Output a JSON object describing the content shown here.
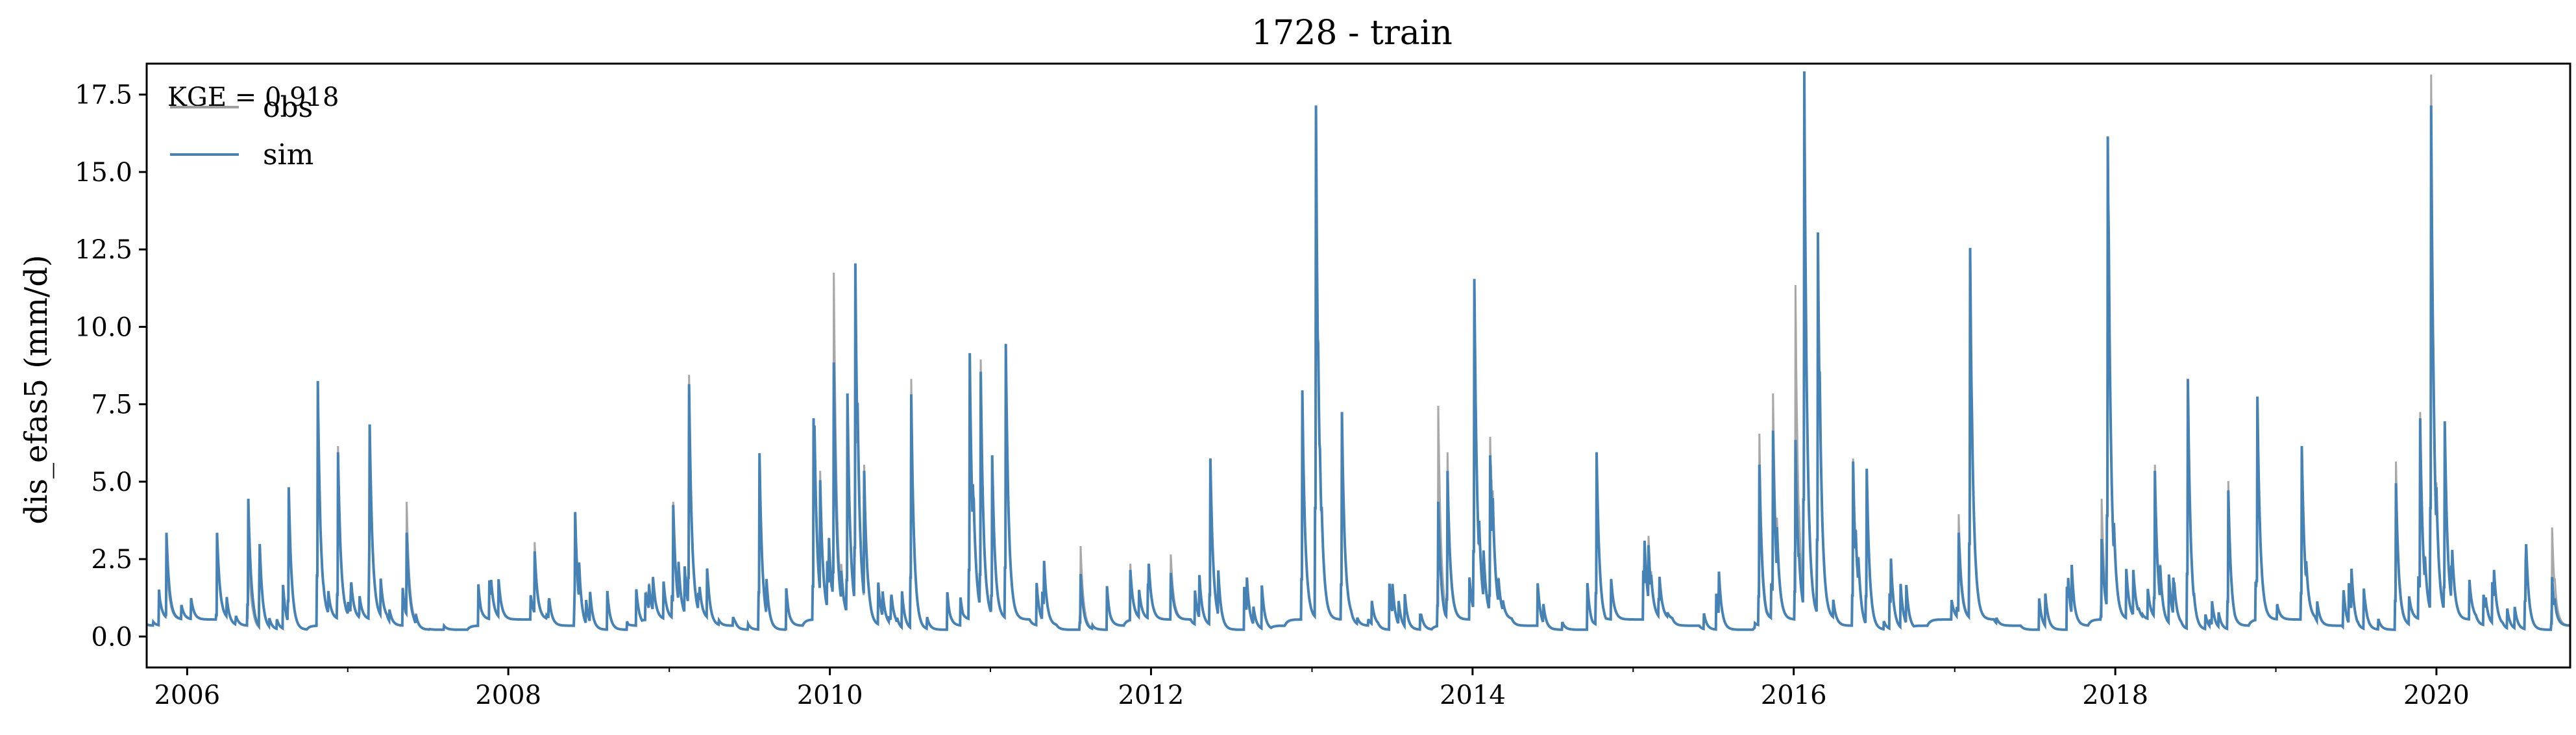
{
  "chart_data": {
    "type": "line",
    "title": "1728 - train",
    "xlabel": "",
    "ylabel": "dis_efas5 (mm/d)",
    "xlim": [
      "2005-10-01",
      "2020-10-31"
    ],
    "ylim": [
      -1.0,
      18.5
    ],
    "x_ticks": [
      "2006",
      "2008",
      "2010",
      "2012",
      "2014",
      "2016",
      "2018",
      "2020"
    ],
    "y_ticks": [
      "0.0",
      "2.5",
      "5.0",
      "7.5",
      "10.0",
      "12.5",
      "15.0",
      "17.5"
    ],
    "annotation": "KGE = 0.918",
    "legend_position": "top-left",
    "grid": false,
    "series": [
      {
        "name": "obs",
        "color": "#9e9e9e",
        "peaks": [
          [
            "2005-11-15",
            2.0
          ],
          [
            "2006-03-10",
            2.6
          ],
          [
            "2006-05-20",
            2.4
          ],
          [
            "2006-08-20",
            4.5
          ],
          [
            "2006-10-25",
            7.6
          ],
          [
            "2006-12-10",
            5.6
          ],
          [
            "2007-02-20",
            6.0
          ],
          [
            "2007-05-15",
            4.0
          ],
          [
            "2007-12-10",
            1.2
          ],
          [
            "2008-03-01",
            2.5
          ],
          [
            "2008-06-01",
            3.8
          ],
          [
            "2008-11-10",
            0.9
          ],
          [
            "2009-01-10",
            3.8
          ],
          [
            "2009-02-15",
            7.9
          ],
          [
            "2009-07-25",
            5.4
          ],
          [
            "2009-11-25",
            6.4
          ],
          [
            "2009-12-10",
            4.8
          ],
          [
            "2010-01-10",
            11.2
          ],
          [
            "2010-02-10",
            7.2
          ],
          [
            "2010-02-28",
            10.4
          ],
          [
            "2010-03-20",
            5.0
          ],
          [
            "2010-07-05",
            8.1
          ],
          [
            "2010-11-15",
            8.6
          ],
          [
            "2010-12-10",
            8.4
          ],
          [
            "2011-01-05",
            5.2
          ],
          [
            "2011-02-05",
            8.9
          ],
          [
            "2011-07-25",
            2.7
          ],
          [
            "2011-11-15",
            1.8
          ],
          [
            "2012-02-15",
            2.1
          ],
          [
            "2012-05-15",
            5.2
          ],
          [
            "2012-12-10",
            7.4
          ],
          [
            "2013-01-10",
            16.4
          ],
          [
            "2013-03-10",
            6.6
          ],
          [
            "2013-10-15",
            7.1
          ],
          [
            "2013-11-05",
            5.4
          ],
          [
            "2014-01-05",
            10.8
          ],
          [
            "2014-02-10",
            5.9
          ],
          [
            "2014-10-10",
            5.6
          ],
          [
            "2015-02-05",
            2.7
          ],
          [
            "2015-10-15",
            6.2
          ],
          [
            "2015-11-15",
            7.3
          ],
          [
            "2016-01-05",
            10.8
          ],
          [
            "2016-01-25",
            17.6
          ],
          [
            "2016-02-25",
            12.3
          ],
          [
            "2016-05-15",
            5.4
          ],
          [
            "2016-06-15",
            5.0
          ],
          [
            "2017-01-10",
            3.4
          ],
          [
            "2017-02-05",
            11.8
          ],
          [
            "2017-12-01",
            3.9
          ],
          [
            "2017-12-15",
            15.4
          ],
          [
            "2018-04-01",
            5.2
          ],
          [
            "2018-06-15",
            8.0
          ],
          [
            "2018-09-15",
            4.8
          ],
          [
            "2018-11-20",
            7.1
          ],
          [
            "2019-03-01",
            5.4
          ],
          [
            "2019-10-01",
            5.3
          ],
          [
            "2019-11-25",
            6.7
          ],
          [
            "2019-12-20",
            17.6
          ],
          [
            "2020-01-20",
            6.3
          ],
          [
            "2020-09-20",
            3.3
          ]
        ]
      },
      {
        "name": "sim",
        "color": "#4682b4",
        "peaks": [
          [
            "2005-11-15",
            2.8
          ],
          [
            "2006-03-10",
            2.8
          ],
          [
            "2006-05-20",
            4.1
          ],
          [
            "2006-08-20",
            4.6
          ],
          [
            "2006-10-25",
            7.9
          ],
          [
            "2006-12-10",
            5.4
          ],
          [
            "2007-02-20",
            6.3
          ],
          [
            "2007-05-15",
            3.0
          ],
          [
            "2007-12-10",
            1.3
          ],
          [
            "2008-03-01",
            2.2
          ],
          [
            "2008-06-01",
            3.8
          ],
          [
            "2008-11-10",
            0.8
          ],
          [
            "2009-01-10",
            3.7
          ],
          [
            "2009-02-15",
            7.6
          ],
          [
            "2009-07-25",
            5.7
          ],
          [
            "2009-11-25",
            6.5
          ],
          [
            "2009-12-10",
            4.5
          ],
          [
            "2010-01-10",
            8.3
          ],
          [
            "2010-02-10",
            7.3
          ],
          [
            "2010-02-28",
            11.5
          ],
          [
            "2010-03-20",
            4.8
          ],
          [
            "2010-07-05",
            7.6
          ],
          [
            "2010-11-15",
            8.6
          ],
          [
            "2010-12-10",
            8.0
          ],
          [
            "2011-01-05",
            5.3
          ],
          [
            "2011-02-05",
            8.9
          ],
          [
            "2011-07-25",
            1.8
          ],
          [
            "2011-11-15",
            1.6
          ],
          [
            "2012-02-15",
            1.5
          ],
          [
            "2012-05-15",
            5.4
          ],
          [
            "2012-12-10",
            7.4
          ],
          [
            "2013-01-10",
            16.6
          ],
          [
            "2013-03-10",
            6.7
          ],
          [
            "2013-10-15",
            4.0
          ],
          [
            "2013-11-05",
            4.8
          ],
          [
            "2014-01-05",
            11.0
          ],
          [
            "2014-02-10",
            5.3
          ],
          [
            "2014-10-10",
            5.6
          ],
          [
            "2015-02-05",
            2.4
          ],
          [
            "2015-10-15",
            5.2
          ],
          [
            "2015-11-15",
            6.1
          ],
          [
            "2016-01-05",
            5.8
          ],
          [
            "2016-01-25",
            17.7
          ],
          [
            "2016-02-25",
            12.5
          ],
          [
            "2016-05-15",
            5.3
          ],
          [
            "2016-06-15",
            5.2
          ],
          [
            "2017-01-10",
            2.8
          ],
          [
            "2017-02-05",
            12.0
          ],
          [
            "2017-12-01",
            2.6
          ],
          [
            "2017-12-15",
            15.6
          ],
          [
            "2018-04-01",
            5.0
          ],
          [
            "2018-06-15",
            8.1
          ],
          [
            "2018-09-15",
            4.5
          ],
          [
            "2018-11-20",
            7.2
          ],
          [
            "2019-03-01",
            5.6
          ],
          [
            "2019-10-01",
            4.6
          ],
          [
            "2019-11-25",
            6.5
          ],
          [
            "2019-12-20",
            16.6
          ],
          [
            "2020-01-20",
            6.4
          ],
          [
            "2020-09-20",
            1.7
          ]
        ]
      }
    ]
  }
}
